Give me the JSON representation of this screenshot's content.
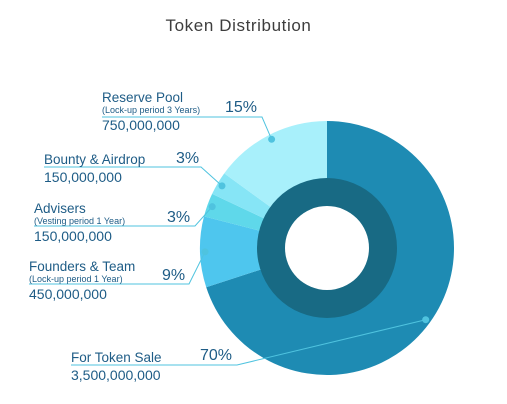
{
  "chart_data": {
    "type": "pie",
    "title": "Token Distribution",
    "series": [
      {
        "name": "Reserve Pool",
        "note": "(Lock-up period 3 Years)",
        "percent": "15%",
        "value": 15,
        "amount": "750,000,000",
        "color": "#a8f0fb"
      },
      {
        "name": "Bounty & Airdrop",
        "note": "",
        "percent": "3%",
        "value": 3,
        "amount": "150,000,000",
        "color": "#86e5f6"
      },
      {
        "name": "Advisers",
        "note": "(Vesting period 1 Year)",
        "percent": "3%",
        "value": 3,
        "amount": "150,000,000",
        "color": "#5fd8ea"
      },
      {
        "name": "Founders & Team",
        "note": "(Lock-up period 1 Year)",
        "percent": "9%",
        "value": 9,
        "amount": "450,000,000",
        "color": "#4ec6ee"
      },
      {
        "name": "For Token Sale",
        "note": "",
        "percent": "70%",
        "value": 70,
        "amount": "3,500,000,000",
        "color": "#1e8bb3"
      }
    ]
  },
  "colors": {
    "inner_ring": "#186a84",
    "leader_line": "#4fc3df",
    "label_text": "#1e5c86"
  }
}
